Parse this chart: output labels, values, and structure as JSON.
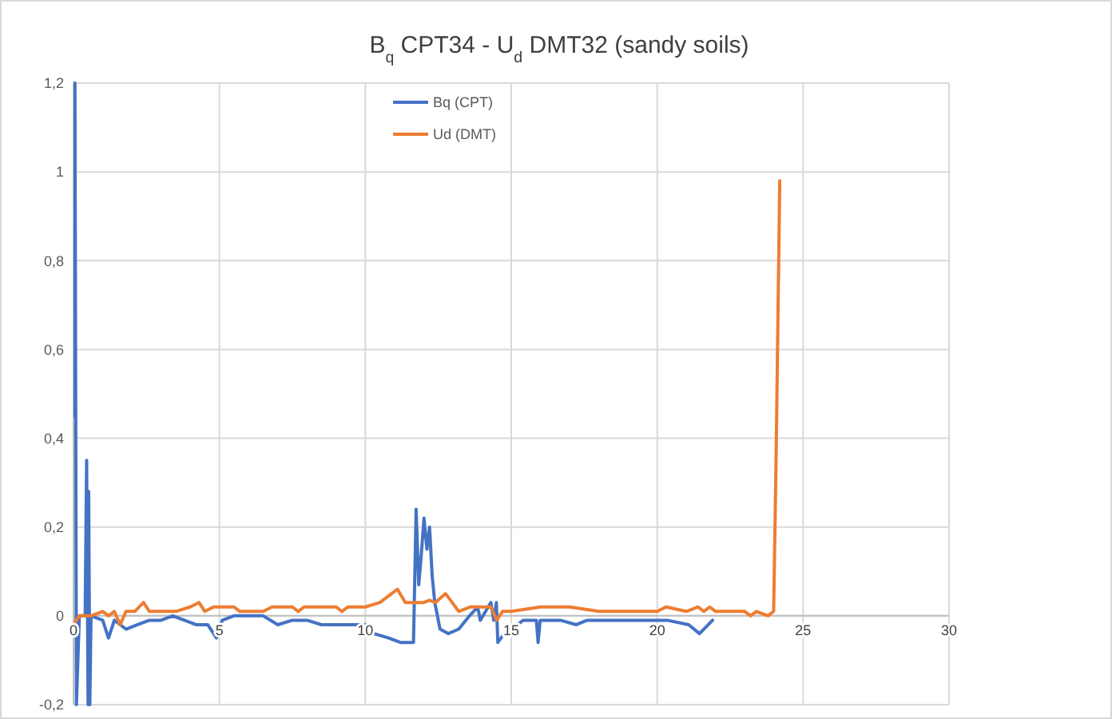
{
  "chart_data": {
    "type": "line",
    "title": "B$_{q}$ CPT34 - U$_{d}$ DMT32 (sandy soils)",
    "xlim": [
      0,
      30
    ],
    "xticks": [
      0,
      5,
      10,
      15,
      20,
      25,
      30
    ],
    "ylim": [
      -0.2,
      1.2
    ],
    "yticks": [
      {
        "value": -0.2,
        "label": "-0,2"
      },
      0,
      {
        "value": 0.2,
        "label": "0,2"
      },
      {
        "value": 0.4,
        "label": "0,4"
      },
      {
        "value": 0.6,
        "label": "0,6"
      },
      {
        "value": 0.8,
        "label": "0,8"
      },
      1,
      {
        "value": 1.2,
        "label": "1,2"
      }
    ],
    "grid": true,
    "legend": "top left",
    "marker": "none",
    "line_style": "solid",
    "series": [
      {
        "name": "Bq (CPT)",
        "color": "#4472c4",
        "x": [
          0,
          0.02,
          0.05,
          0.1,
          0.2,
          0.4,
          0.45,
          0.5,
          0.52,
          0.56,
          0.6,
          1.0,
          1.2,
          1.4,
          1.8,
          2.2,
          2.6,
          3.0,
          3.4,
          3.8,
          4.2,
          4.6,
          4.9,
          5.1,
          5.5,
          6.0,
          6.5,
          7.0,
          7.5,
          8.0,
          8.5,
          9.0,
          9.5,
          10.0,
          10.3,
          10.8,
          11.2,
          11.65,
          11.74,
          11.83,
          11.92,
          12.01,
          12.11,
          12.2,
          12.29,
          12.38,
          12.56,
          12.84,
          13.2,
          13.57,
          13.85,
          13.94,
          14.3,
          14.4,
          14.49,
          14.54,
          14.76,
          15.04,
          15.4,
          15.86,
          15.92,
          15.99,
          16.68,
          17.23,
          17.6,
          18.5,
          19.43,
          20.35,
          21.08,
          21.45,
          21.9
        ],
        "values": [
          0.45,
          1.2,
          1.2,
          -0.2,
          0,
          0,
          0.35,
          -0.2,
          0.28,
          -0.2,
          0,
          -0.01,
          -0.05,
          -0.01,
          -0.03,
          -0.02,
          -0.01,
          -0.01,
          0,
          -0.01,
          -0.02,
          -0.02,
          -0.05,
          -0.01,
          0,
          0,
          0,
          -0.02,
          -0.01,
          -0.01,
          -0.02,
          -0.02,
          -0.02,
          -0.02,
          -0.04,
          -0.05,
          -0.06,
          -0.06,
          0.24,
          0.07,
          0.14,
          0.22,
          0.15,
          0.2,
          0.09,
          0.03,
          -0.03,
          -0.04,
          -0.03,
          0,
          0.02,
          -0.01,
          0.03,
          -0.01,
          0.03,
          -0.06,
          -0.04,
          -0.03,
          -0.01,
          -0.01,
          -0.06,
          -0.01,
          -0.01,
          -0.02,
          -0.01,
          -0.01,
          -0.01,
          -0.01,
          -0.02,
          -0.04,
          -0.01
        ]
      },
      {
        "name": "Ud (DMT)",
        "color": "#ed7d31",
        "x": [
          0,
          0.2,
          0.6,
          1.0,
          1.2,
          1.4,
          1.6,
          1.8,
          2.1,
          2.4,
          2.6,
          3.5,
          4.0,
          4.3,
          4.5,
          4.8,
          5.5,
          5.7,
          6.5,
          6.8,
          7.5,
          7.7,
          7.9,
          9.0,
          9.2,
          9.4,
          10.0,
          10.5,
          10.9,
          11.1,
          11.37,
          12.0,
          12.2,
          12.4,
          12.75,
          13.2,
          13.6,
          14.3,
          14.5,
          14.7,
          15.0,
          16.0,
          17.0,
          18.0,
          19.0,
          20.0,
          20.3,
          21.0,
          21.4,
          21.6,
          21.8,
          22.0,
          23.0,
          23.2,
          23.4,
          23.8,
          23.99,
          24.08,
          24.2
        ],
        "values": [
          -0.02,
          0,
          0,
          0.01,
          0,
          0.01,
          -0.02,
          0.01,
          0.01,
          0.03,
          0.01,
          0.01,
          0.02,
          0.03,
          0.01,
          0.02,
          0.02,
          0.01,
          0.01,
          0.02,
          0.02,
          0.01,
          0.02,
          0.02,
          0.01,
          0.02,
          0.02,
          0.03,
          0.05,
          0.06,
          0.03,
          0.03,
          0.035,
          0.03,
          0.05,
          0.01,
          0.02,
          0.02,
          -0.01,
          0.01,
          0.01,
          0.02,
          0.02,
          0.01,
          0.01,
          0.01,
          0.02,
          0.01,
          0.02,
          0.01,
          0.02,
          0.01,
          0.01,
          0,
          0.01,
          0,
          0.01,
          0.38,
          0.98
        ]
      }
    ]
  }
}
